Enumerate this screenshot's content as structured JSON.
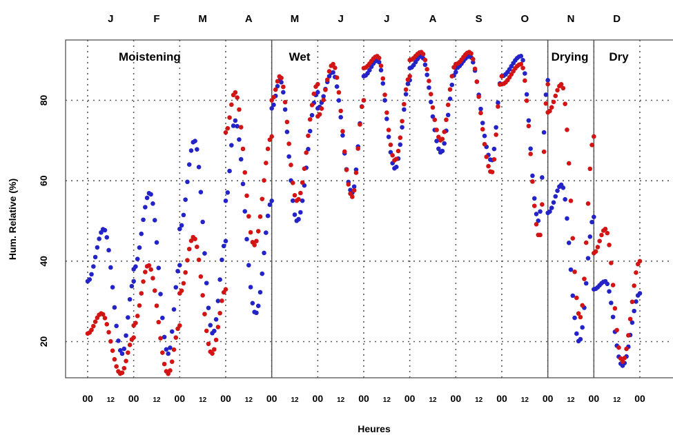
{
  "chart_data": {
    "type": "scatter",
    "xlabel": "Heures",
    "ylabel": "Hum. Relative (%)",
    "yticks": [
      20,
      40,
      60,
      80
    ],
    "ylim": [
      11,
      95
    ],
    "grid": true,
    "months": [
      "J",
      "F",
      "M",
      "A",
      "M",
      "J",
      "J",
      "A",
      "S",
      "O",
      "N",
      "D"
    ],
    "hour_ticks": [
      "00",
      "12"
    ],
    "final_hour_tick": "00",
    "seasons": [
      {
        "label": "Moistening",
        "months": [
          0,
          3
        ]
      },
      {
        "label": "Wet",
        "months": [
          4,
          9
        ]
      },
      {
        "label": "Drying",
        "months": [
          10,
          10
        ]
      },
      {
        "label": "Dry",
        "months": [
          11,
          11
        ]
      }
    ],
    "series": [
      {
        "color": "#2323c8",
        "months": [
          {
            "h0": 35,
            "hmax": 48,
            "hmaxAt": 0.35,
            "hmin": 17,
            "hminAt": 0.75,
            "h24": 35
          },
          {
            "h0": 38,
            "hmax": 57,
            "hmaxAt": 0.35,
            "hmin": 17,
            "hminAt": 0.75,
            "h24": 39
          },
          {
            "h0": 48,
            "hmax": 70,
            "hmaxAt": 0.32,
            "hmin": 22,
            "hminAt": 0.72,
            "h24": 45
          },
          {
            "h0": 55,
            "hmax": 75,
            "hmaxAt": 0.2,
            "hmin": 27,
            "hminAt": 0.65,
            "h24": 55
          },
          {
            "h0": 78,
            "hmax": 85,
            "hmaxAt": 0.18,
            "hmin": 50,
            "hminAt": 0.55,
            "h24": 82
          },
          {
            "h0": 78,
            "hmax": 87,
            "hmaxAt": 0.32,
            "hmin": 57,
            "hminAt": 0.75,
            "h24": 80
          },
          {
            "h0": 86,
            "hmax": 90,
            "hmaxAt": 0.3,
            "hmin": 63,
            "hminAt": 0.68,
            "h24": 85
          },
          {
            "h0": 88,
            "hmax": 91,
            "hmaxAt": 0.25,
            "hmin": 67,
            "hminAt": 0.68,
            "h24": 87
          },
          {
            "h0": 88,
            "hmax": 91,
            "hmaxAt": 0.3,
            "hmin": 65,
            "hminAt": 0.78,
            "h24": 86
          },
          {
            "h0": 86,
            "hmax": 91,
            "hmaxAt": 0.42,
            "hmin": 50,
            "hminAt": 0.8,
            "h24": 85
          },
          {
            "h0": 52,
            "hmax": 59,
            "hmaxAt": 0.3,
            "hmin": 20,
            "hminAt": 0.68,
            "h24": 51
          },
          {
            "h0": 33,
            "hmax": 35,
            "hmaxAt": 0.25,
            "hmin": 14,
            "hminAt": 0.62,
            "h24": 32
          }
        ]
      },
      {
        "color": "#d21414",
        "months": [
          {
            "h0": 22,
            "hmax": 27,
            "hmaxAt": 0.3,
            "hmin": 12,
            "hminAt": 0.72,
            "h24": 21
          },
          {
            "h0": 24,
            "hmax": 39,
            "hmaxAt": 0.32,
            "hmin": 12,
            "hminAt": 0.75,
            "h24": 24
          },
          {
            "h0": 32,
            "hmax": 46,
            "hmaxAt": 0.3,
            "hmin": 17,
            "hminAt": 0.7,
            "h24": 33
          },
          {
            "h0": 72,
            "hmax": 82,
            "hmaxAt": 0.2,
            "hmin": 44,
            "hminAt": 0.62,
            "h24": 71
          },
          {
            "h0": 80,
            "hmax": 86,
            "hmaxAt": 0.18,
            "hmin": 55,
            "hminAt": 0.55,
            "h24": 84
          },
          {
            "h0": 76,
            "hmax": 89,
            "hmaxAt": 0.33,
            "hmin": 56,
            "hminAt": 0.75,
            "h24": 80
          },
          {
            "h0": 88,
            "hmax": 91,
            "hmaxAt": 0.3,
            "hmin": 65,
            "hminAt": 0.68,
            "h24": 86
          },
          {
            "h0": 90,
            "hmax": 92,
            "hmaxAt": 0.25,
            "hmin": 70,
            "hminAt": 0.68,
            "h24": 89
          },
          {
            "h0": 89,
            "hmax": 92,
            "hmaxAt": 0.3,
            "hmin": 62,
            "hminAt": 0.78,
            "h24": 86
          },
          {
            "h0": 84,
            "hmax": 89,
            "hmaxAt": 0.42,
            "hmin": 46,
            "hminAt": 0.82,
            "h24": 84
          },
          {
            "h0": 77,
            "hmax": 84,
            "hmaxAt": 0.3,
            "hmin": 26,
            "hminAt": 0.7,
            "h24": 71
          },
          {
            "h0": 42,
            "hmax": 48,
            "hmaxAt": 0.25,
            "hmin": 15,
            "hminAt": 0.62,
            "h24": 40
          }
        ]
      }
    ]
  }
}
